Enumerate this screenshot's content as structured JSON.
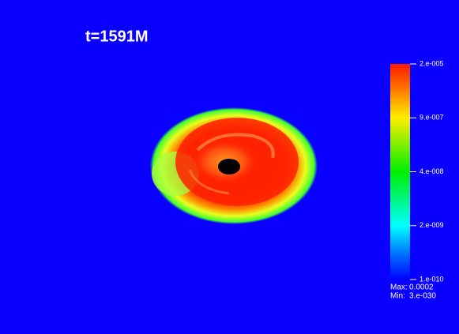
{
  "time_label": "t=1591M",
  "colorbar": {
    "ticks": [
      "2.e-005",
      "9.e-007",
      "4.e-008",
      "2.e-009",
      "1.e-010"
    ]
  },
  "range": {
    "max_label": "Max:",
    "max": "0.0002",
    "min_label": "Min:",
    "min": "3.e-030"
  }
}
